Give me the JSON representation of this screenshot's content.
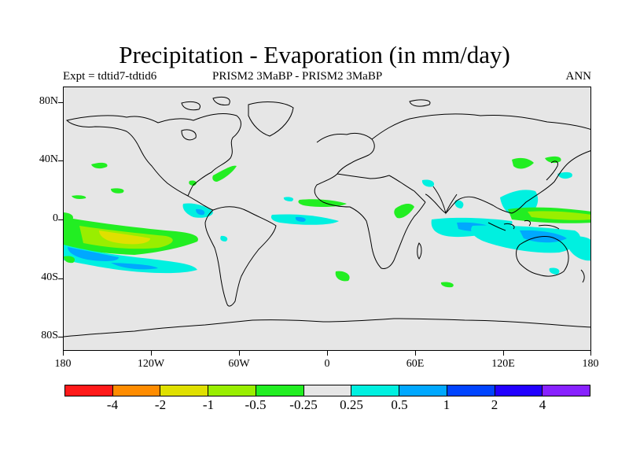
{
  "title": "Precipitation - Evaporation (in mm/day)",
  "subtitle_left": "Expt = tdtid7-tdtid6",
  "subtitle_center": "PRISM2    3MaBP - PRISM2    3MaBP",
  "subtitle_right": "ANN",
  "axes": {
    "y_labels": [
      "80N",
      "40N",
      "0",
      "40S",
      "80S"
    ],
    "x_labels": [
      "180",
      "120W",
      "60W",
      "0",
      "60E",
      "120E",
      "180"
    ]
  },
  "colorbar": {
    "colors": [
      "#ff1a1a",
      "#ff8c00",
      "#e0e000",
      "#99ee00",
      "#22ee22",
      "#e6e6e6",
      "#00f0e0",
      "#00a8ff",
      "#0044ff",
      "#2200ff",
      "#8822ff"
    ],
    "labels": [
      "-4",
      "-2",
      "-1",
      "-0.5",
      "-0.25",
      "0.25",
      "0.5",
      "1",
      "2",
      "4"
    ]
  },
  "colors": {
    "ocean": "#e6e6e6",
    "coast": "#000000"
  }
}
